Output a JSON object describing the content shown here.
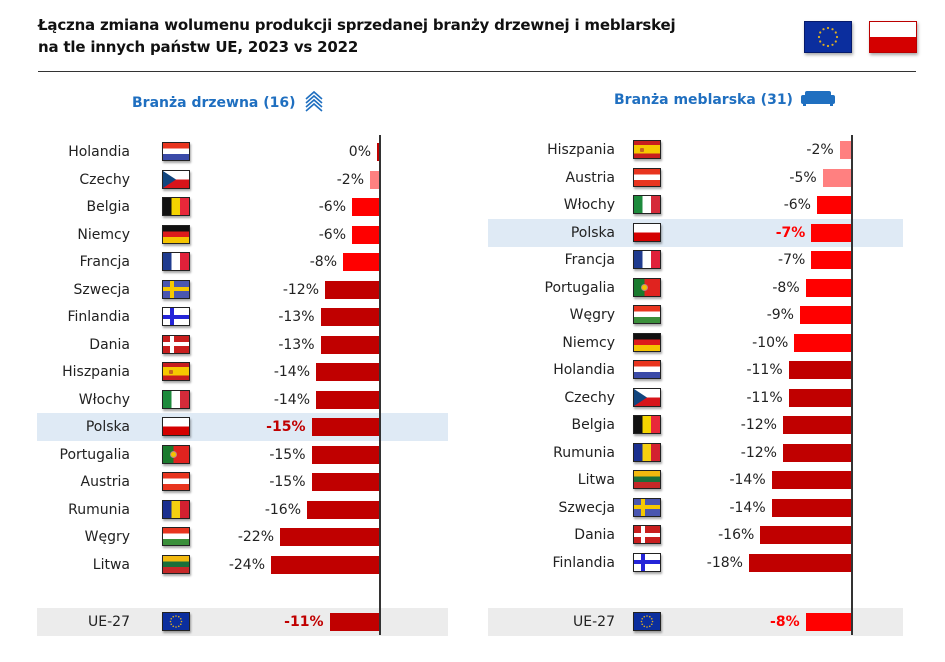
{
  "header": {
    "title_line1": "Łączna zmiana wolumenu produkcji sprzedanej branży drzewnej i meblarskej",
    "title_line2": "na tle innych państw UE, 2023 vs 2022",
    "flags": [
      "eu-flag-icon",
      "poland-flag-icon"
    ]
  },
  "colors": {
    "light": "#FF8080",
    "medium": "#FF0000",
    "dark": "#C00000",
    "title_blue": "#1F6FC0",
    "highlight_bg": "#DFEAF5",
    "eu_bg": "#ECECEC",
    "highlight_text_wood": "#C00000",
    "highlight_text_furniture": "#FF0000"
  },
  "chart_data": [
    {
      "type": "bar",
      "orientation": "horizontal",
      "title": "Branża drzewna (16)",
      "icon": "chevrons-up-icon",
      "categories": [
        "Holandia",
        "Czechy",
        "Belgia",
        "Niemcy",
        "Francja",
        "Szwecja",
        "Finlandia",
        "Dania",
        "Hiszpania",
        "Włochy",
        "Polska",
        "Portugalia",
        "Austria",
        "Rumunia",
        "Węgry",
        "Litwa"
      ],
      "values": [
        0,
        -2,
        -6,
        -6,
        -8,
        -12,
        -13,
        -13,
        -14,
        -14,
        -15,
        -15,
        -15,
        -16,
        -22,
        -24
      ],
      "labels": [
        "0%",
        "-2%",
        "-6%",
        "-6%",
        "-8%",
        "-12%",
        "-13%",
        "-13%",
        "-14%",
        "-14%",
        "-15%",
        "-15%",
        "-15%",
        "-16%",
        "-22%",
        "-24%"
      ],
      "flags": [
        "nl",
        "cz",
        "be",
        "de",
        "fr",
        "se",
        "fi",
        "dk",
        "es",
        "it",
        "pl",
        "pt",
        "at",
        "ro",
        "hu",
        "lt"
      ],
      "highlight": "Polska",
      "summary": {
        "label": "UE-27",
        "value": -11,
        "text": "-11%",
        "flag": "eu"
      },
      "unit": "%",
      "xlim": [
        -24,
        0
      ],
      "grid": false,
      "legend": "none"
    },
    {
      "type": "bar",
      "orientation": "horizontal",
      "title": "Branża meblarska (31)",
      "icon": "sofa-icon",
      "categories": [
        "Hiszpania",
        "Austria",
        "Włochy",
        "Polska",
        "Francja",
        "Portugalia",
        "Węgry",
        "Niemcy",
        "Holandia",
        "Czechy",
        "Belgia",
        "Rumunia",
        "Litwa",
        "Szwecja",
        "Dania",
        "Finlandia"
      ],
      "values": [
        -2,
        -5,
        -6,
        -7,
        -7,
        -8,
        -9,
        -10,
        -11,
        -11,
        -12,
        -12,
        -14,
        -14,
        -16,
        -18
      ],
      "labels": [
        "-2%",
        "-5%",
        "-6%",
        "-7%",
        "-7%",
        "-8%",
        "-9%",
        "-10%",
        "-11%",
        "-11%",
        "-12%",
        "-12%",
        "-14%",
        "-14%",
        "-16%",
        "-18%"
      ],
      "flags": [
        "es",
        "at",
        "it",
        "pl",
        "fr",
        "pt",
        "hu",
        "de",
        "nl",
        "cz",
        "be",
        "ro",
        "lt",
        "se",
        "dk",
        "fi"
      ],
      "highlight": "Polska",
      "summary": {
        "label": "UE-27",
        "value": -8,
        "text": "-8%",
        "flag": "eu"
      },
      "unit": "%",
      "xlim": [
        -18,
        0
      ],
      "grid": false,
      "legend": "none"
    }
  ]
}
